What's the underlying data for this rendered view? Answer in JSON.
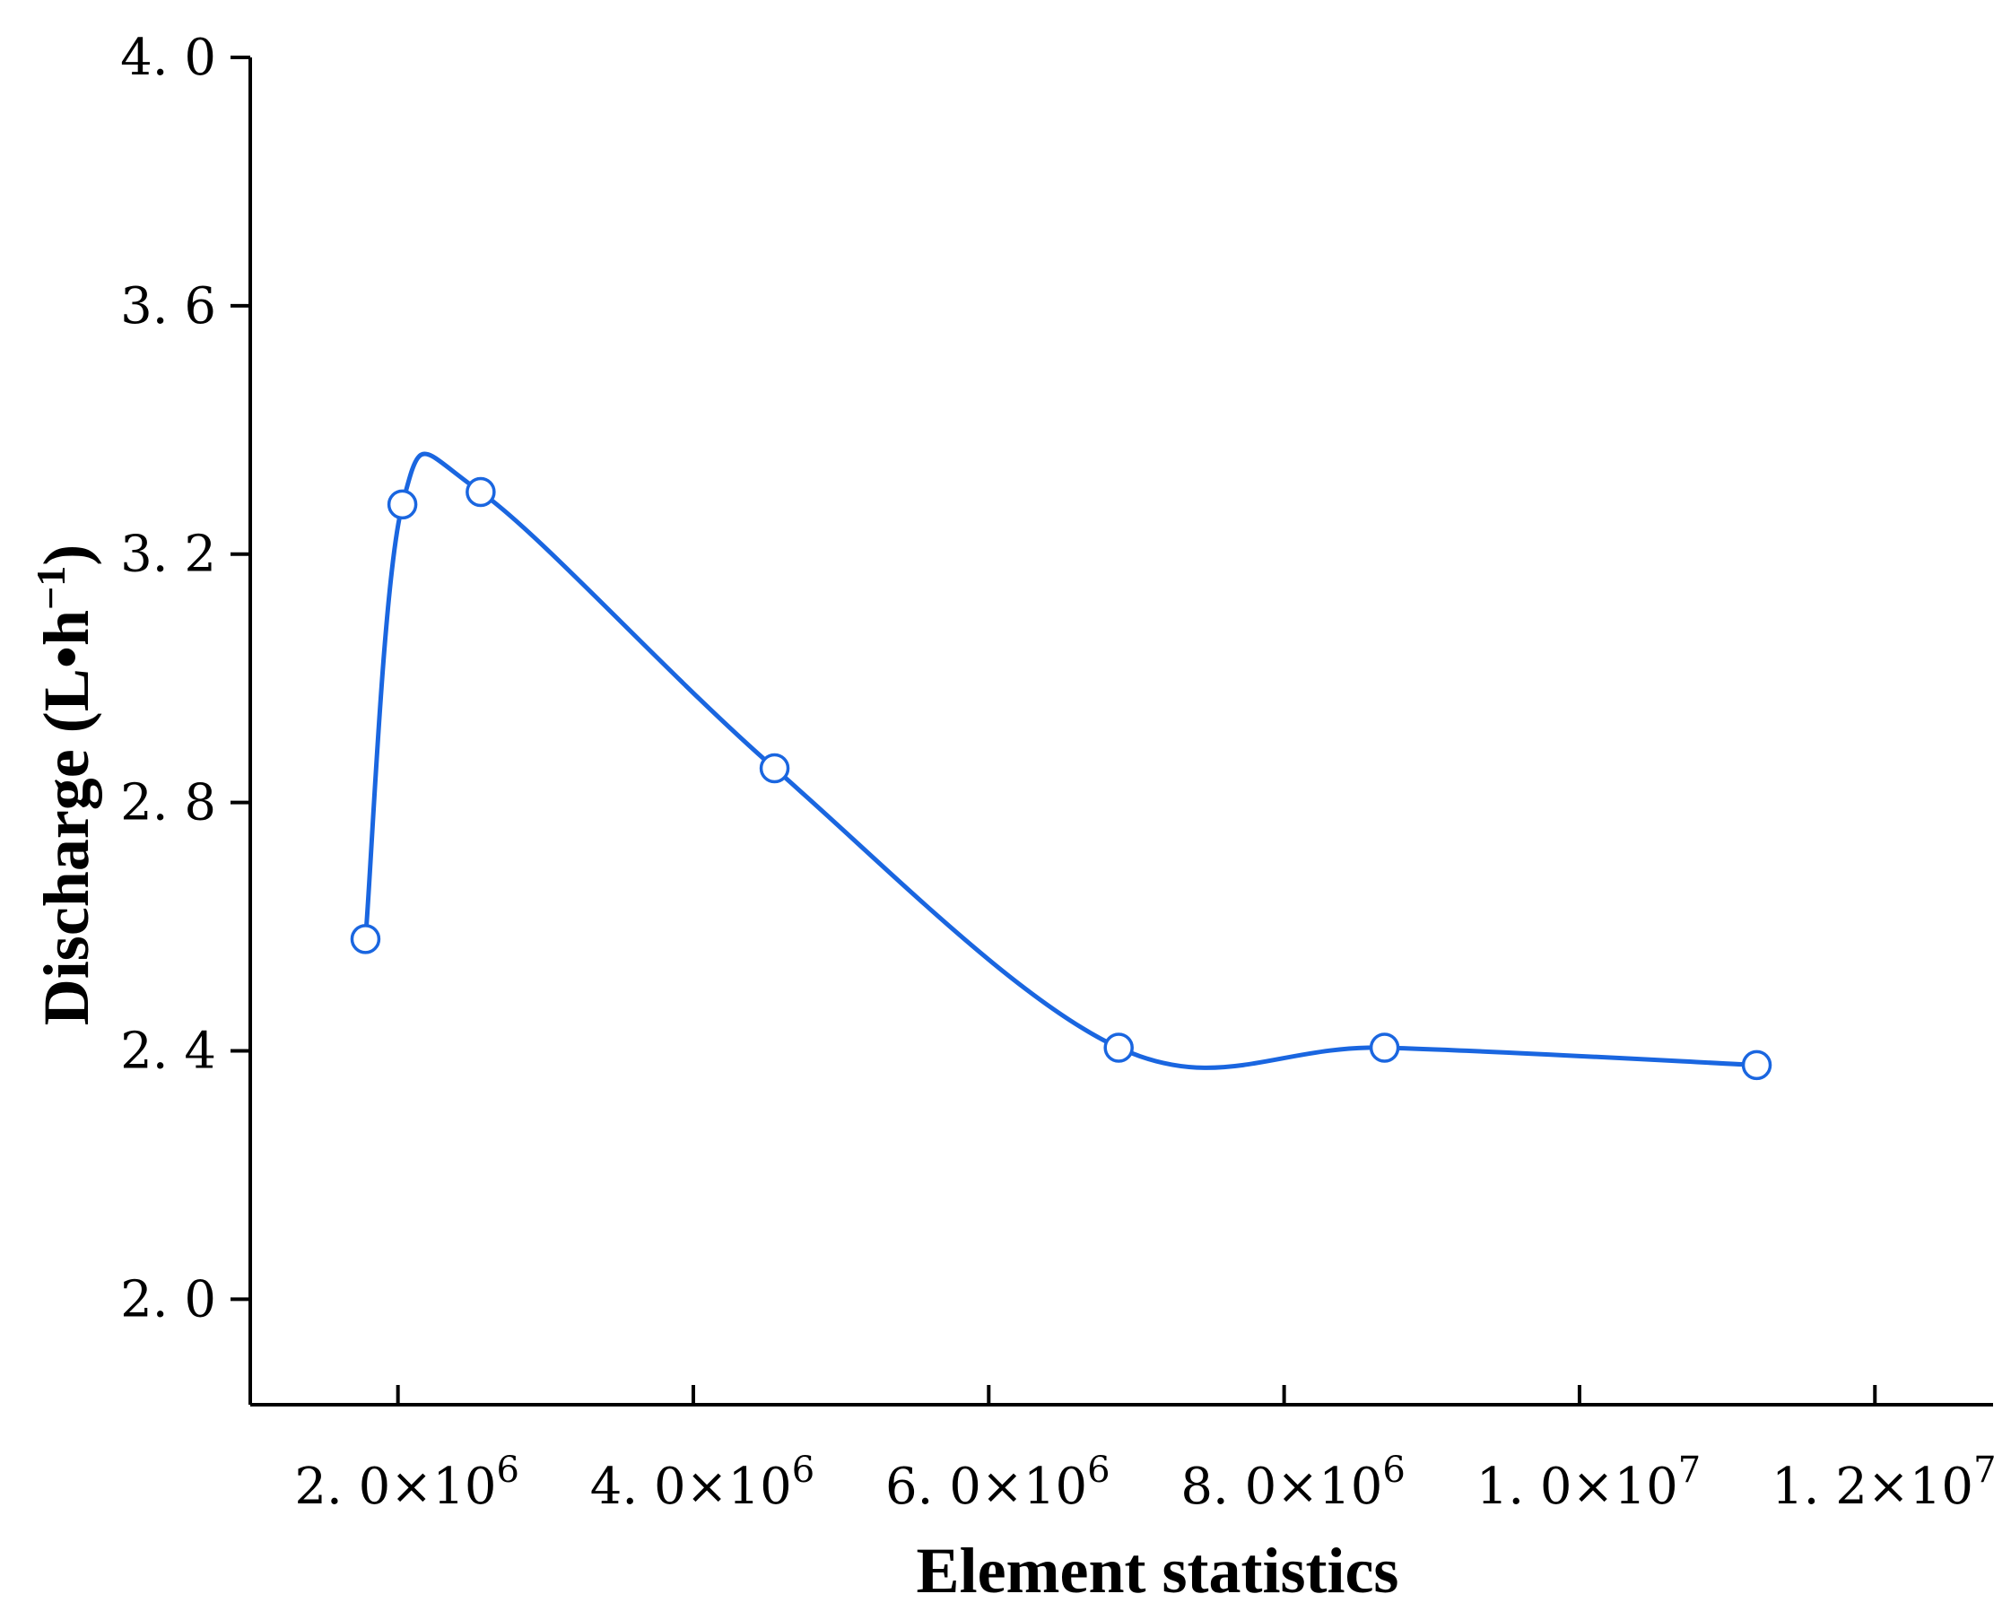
{
  "chart_data": {
    "type": "line",
    "xlabel": "Element statistics",
    "ylabel": "Discharge (L•h⁻¹)",
    "ylabel_parts": {
      "main": "Discharge (L•h",
      "sup": "−1",
      "close": ")"
    },
    "xlim": [
      1000000,
      12800000
    ],
    "ylim": [
      1.83,
      4.0
    ],
    "yticks": [
      2.0,
      2.4,
      2.8,
      3.2,
      3.6,
      4.0
    ],
    "ytick_labels": [
      "2. 0",
      "2. 4",
      "2. 8",
      "3. 2",
      "3. 6",
      "4. 0"
    ],
    "xticks": [
      2000000,
      4000000,
      6000000,
      8000000,
      10000000,
      12000000
    ],
    "xtick_labels": [
      {
        "mantissa": "2. 0×10",
        "exp": "6"
      },
      {
        "mantissa": "4. 0×10",
        "exp": "6"
      },
      {
        "mantissa": "6. 0×10",
        "exp": "6"
      },
      {
        "mantissa": "8. 0×10",
        "exp": "6"
      },
      {
        "mantissa": "1. 0×10",
        "exp": "7"
      },
      {
        "mantissa": "1. 2×10",
        "exp": "7"
      }
    ],
    "grid": false,
    "series": [
      {
        "color": "#1a66e0",
        "marker": "open-circle",
        "x": [
          1780000,
          2030000,
          2560000,
          4550000,
          6880000,
          8680000,
          11200000
        ],
        "y": [
          2.58,
          3.28,
          3.3,
          2.855,
          2.405,
          2.405,
          2.377
        ]
      }
    ]
  }
}
